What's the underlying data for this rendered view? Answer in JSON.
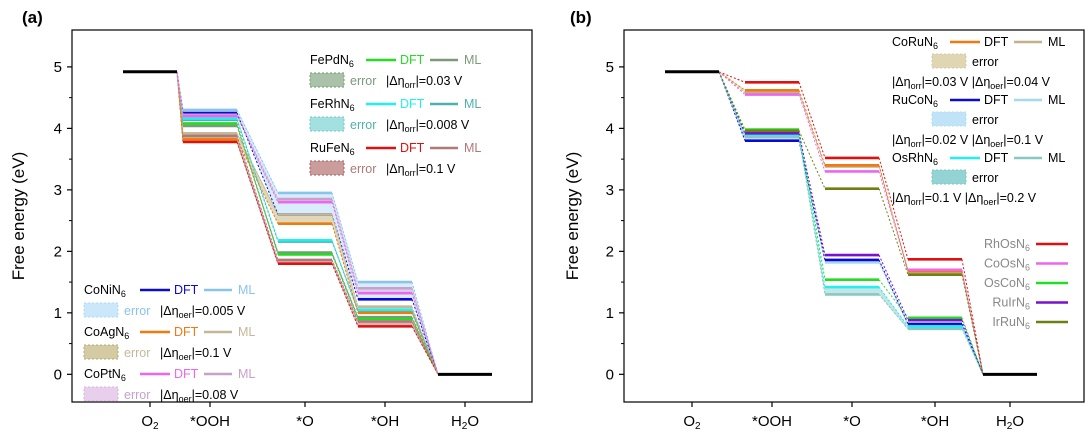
{
  "chart_data": [
    {
      "type": "energy-diagram",
      "panel_label": "(a)",
      "ylabel": "Free energy (eV)",
      "ylim": [
        -0.45,
        5.6
      ],
      "yticks": [
        "0",
        "1",
        "2",
        "3",
        "4",
        "5"
      ],
      "categories": [
        "O2",
        "*OOH",
        "*O",
        "*OH",
        "H2O"
      ],
      "category_labels": [
        {
          "main": "O",
          "sub": "2",
          "post": ""
        },
        {
          "main": "*OOH",
          "sub": "",
          "post": ""
        },
        {
          "main": "*O",
          "sub": "",
          "post": ""
        },
        {
          "main": "*OH",
          "sub": "",
          "post": ""
        },
        {
          "main": "H",
          "sub": "2",
          "post": "O"
        }
      ],
      "series": [
        {
          "name": "FePdN6",
          "dft_color": "#22dd22",
          "ml_color": "#7a9a7a",
          "band_color": "#6f9a6f",
          "dft": [
            4.92,
            4.08,
            1.95,
            0.9,
            0
          ],
          "ml": [
            4.92,
            4.04,
            1.98,
            0.93,
            0
          ]
        },
        {
          "name": "FeRhN6",
          "dft_color": "#22f0f0",
          "ml_color": "#4fb0b0",
          "band_color": "#66cccc",
          "dft": [
            4.92,
            4.16,
            2.18,
            1.05,
            0
          ],
          "ml": [
            4.92,
            4.14,
            2.16,
            1.03,
            0
          ]
        },
        {
          "name": "RuFeN6",
          "dft_color": "#e01010",
          "ml_color": "#b07878",
          "band_color": "#a85a5a",
          "dft": [
            4.92,
            3.78,
            1.8,
            0.78,
            0
          ],
          "ml": [
            4.92,
            3.88,
            1.86,
            0.86,
            0
          ]
        },
        {
          "name": "CoNiN6",
          "dft_color": "#0a0ad0",
          "ml_color": "#8ac4ea",
          "band_color": "#a8d8f8",
          "dft": [
            4.92,
            4.25,
            2.6,
            1.22,
            0
          ],
          "ml": [
            4.92,
            4.3,
            2.95,
            1.5,
            0
          ]
        },
        {
          "name": "CoAgN6",
          "dft_color": "#ee7a10",
          "ml_color": "#c4b89a",
          "band_color": "#b8a868",
          "dft": [
            4.92,
            3.82,
            2.45,
            1.0,
            0
          ],
          "ml": [
            4.92,
            3.92,
            2.6,
            1.1,
            0
          ]
        },
        {
          "name": "CoPtN6",
          "dft_color": "#ee66ee",
          "ml_color": "#c8a0c8",
          "band_color": "#d8b0e0",
          "dft": [
            4.92,
            4.2,
            2.8,
            1.32,
            0
          ],
          "ml": [
            4.92,
            4.22,
            2.85,
            1.4,
            0
          ]
        }
      ],
      "legend": [
        {
          "name": "FePdN",
          "sub": "6",
          "dft": "DFT",
          "ml": "ML",
          "err": "error",
          "delta_sub": "orr",
          "value": "=0.03 V"
        },
        {
          "name": "FeRhN",
          "sub": "6",
          "dft": "DFT",
          "ml": "ML",
          "err": "error",
          "delta_sub": "orr",
          "value": "=0.008 V"
        },
        {
          "name": "RuFeN",
          "sub": "6",
          "dft": "DFT",
          "ml": "ML",
          "err": "error",
          "delta_sub": "orr",
          "value": "=0.1 V"
        },
        {
          "name": "CoNiN",
          "sub": "6",
          "dft": "DFT",
          "ml": "ML",
          "err": "error",
          "delta_sub": "oer",
          "value": "=0.005 V"
        },
        {
          "name": "CoAgN",
          "sub": "6",
          "dft": "DFT",
          "ml": "ML",
          "err": "error",
          "delta_sub": "oer",
          "value": "=0.1 V"
        },
        {
          "name": "CoPtN",
          "sub": "6",
          "dft": "DFT",
          "ml": "ML",
          "err": "error",
          "delta_sub": "oer",
          "value": "=0.08 V"
        }
      ]
    },
    {
      "type": "energy-diagram",
      "panel_label": "(b)",
      "ylabel": "Free energy (eV)",
      "ylim": [
        -0.45,
        5.6
      ],
      "yticks": [
        "0",
        "1",
        "2",
        "3",
        "4",
        "5"
      ],
      "categories": [
        "O2",
        "*OOH",
        "*O",
        "*OH",
        "H2O"
      ],
      "category_labels": [
        {
          "main": "O",
          "sub": "2",
          "post": ""
        },
        {
          "main": "*OOH",
          "sub": "",
          "post": ""
        },
        {
          "main": "*O",
          "sub": "",
          "post": ""
        },
        {
          "main": "*OH",
          "sub": "",
          "post": ""
        },
        {
          "main": "H",
          "sub": "2",
          "post": "O"
        }
      ],
      "band_series": [
        {
          "name": "CoRuN6",
          "dft_color": "#ee7a10",
          "ml_color": "#c4b08a",
          "band_color": "#d8cca0",
          "dft": [
            4.92,
            4.62,
            3.4,
            1.68,
            0
          ],
          "ml": [
            4.92,
            4.58,
            3.38,
            1.66,
            0
          ]
        },
        {
          "name": "RuCoN6",
          "dft_color": "#0a0ad0",
          "ml_color": "#a8d8f0",
          "band_color": "#b0dcf6",
          "dft": [
            4.92,
            3.8,
            1.86,
            0.82,
            0
          ],
          "ml": [
            4.92,
            3.86,
            1.82,
            0.8,
            0
          ]
        },
        {
          "name": "OsRhN6",
          "dft_color": "#22f0f0",
          "ml_color": "#88c8c0",
          "band_color": "#78c8c8",
          "dft": [
            4.92,
            3.9,
            1.42,
            0.78,
            0
          ],
          "ml": [
            4.92,
            3.86,
            1.3,
            0.74,
            0
          ]
        }
      ],
      "line_series": [
        {
          "name": "RhOsN6",
          "color": "#e01010",
          "dft": [
            4.92,
            4.75,
            3.52,
            1.87,
            0
          ]
        },
        {
          "name": "CoOsN6",
          "color": "#ee66ee",
          "dft": [
            4.92,
            4.55,
            3.3,
            1.7,
            0
          ]
        },
        {
          "name": "OsCoN6",
          "color": "#22dd22",
          "dft": [
            4.92,
            3.98,
            1.54,
            0.92,
            0
          ]
        },
        {
          "name": "RuIrN6",
          "color": "#7a10d0",
          "dft": [
            4.92,
            3.92,
            1.94,
            0.88,
            0
          ]
        },
        {
          "name": "IrRuN6",
          "color": "#708010",
          "dft": [
            4.92,
            3.96,
            3.02,
            1.62,
            0
          ]
        }
      ],
      "legend_bands": [
        {
          "name": "CoRuN",
          "sub": "6",
          "dft": "DFT",
          "ml": "ML",
          "err": "error",
          "v1": "=0.03 V",
          "v2": "=0.04 V"
        },
        {
          "name": "RuCoN",
          "sub": "6",
          "dft": "DFT",
          "ml": "ML",
          "err": "error",
          "v1": "=0.02 V",
          "v2": "=0.1 V"
        },
        {
          "name": "OsRhN",
          "sub": "6",
          "dft": "DFT",
          "ml": "ML",
          "err": "error",
          "v1": "=0.1 V",
          "v2": "=0.2 V"
        }
      ],
      "legend_lines": [
        {
          "name": "RhOsN",
          "sub": "6"
        },
        {
          "name": "CoOsN",
          "sub": "6"
        },
        {
          "name": "OsCoN",
          "sub": "6"
        },
        {
          "name": "RuIrN",
          "sub": "6"
        },
        {
          "name": "IrRuN",
          "sub": "6"
        }
      ],
      "delta_labels": {
        "orr": "orr",
        "oer": "oer"
      }
    }
  ]
}
